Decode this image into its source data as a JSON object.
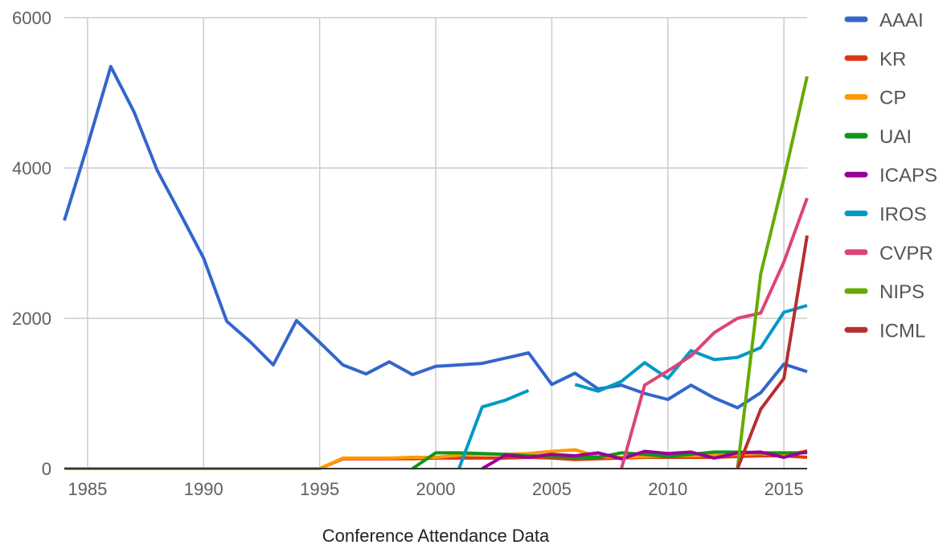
{
  "chart_data": {
    "type": "line",
    "title": "",
    "xlabel": "Conference Attendance Data",
    "ylabel": "",
    "xlim": [
      1984,
      2016
    ],
    "ylim": [
      0,
      6000
    ],
    "x_ticks": [
      1985,
      1990,
      1995,
      2000,
      2005,
      2010,
      2015
    ],
    "y_ticks": [
      0,
      2000,
      4000,
      6000
    ],
    "grid": true,
    "legend_position": "right",
    "series": [
      {
        "name": "AAAI",
        "color": "#3366cc",
        "points": [
          [
            1984,
            3300
          ],
          [
            1985,
            4300
          ],
          [
            1986,
            5350
          ],
          [
            1987,
            4750
          ],
          [
            1988,
            3970
          ],
          [
            1989,
            3390
          ],
          [
            1990,
            2800
          ],
          [
            1991,
            1960
          ],
          [
            1992,
            1690
          ],
          [
            1993,
            1380
          ],
          [
            1994,
            1970
          ],
          [
            1995,
            1680
          ],
          [
            1996,
            1380
          ],
          [
            1997,
            1260
          ],
          [
            1998,
            1420
          ],
          [
            1999,
            1250
          ],
          [
            2000,
            1360
          ],
          [
            2001,
            1380
          ],
          [
            2002,
            1400
          ],
          [
            2003,
            1470
          ],
          [
            2004,
            1540
          ],
          [
            2005,
            1120
          ],
          [
            2006,
            1270
          ],
          [
            2007,
            1060
          ],
          [
            2008,
            1110
          ],
          [
            2009,
            1000
          ],
          [
            2010,
            920
          ],
          [
            2011,
            1110
          ],
          [
            2012,
            940
          ],
          [
            2013,
            810
          ],
          [
            2014,
            1010
          ],
          [
            2015,
            1390
          ],
          [
            2016,
            1290
          ]
        ]
      },
      {
        "name": "KR",
        "color": "#dc3912",
        "points": [
          [
            1984,
            0
          ],
          [
            1985,
            0
          ],
          [
            1986,
            0
          ],
          [
            1987,
            0
          ],
          [
            1988,
            0
          ],
          [
            1989,
            0
          ],
          [
            1990,
            0
          ],
          [
            1991,
            0
          ],
          [
            1992,
            0
          ],
          [
            1993,
            0
          ],
          [
            1994,
            0
          ],
          [
            1995,
            0
          ],
          [
            1996,
            130
          ],
          [
            1997,
            130
          ],
          [
            1998,
            130
          ],
          [
            1999,
            130
          ],
          [
            2000,
            140
          ],
          [
            2001,
            140
          ],
          [
            2002,
            140
          ],
          [
            2003,
            140
          ],
          [
            2004,
            150
          ],
          [
            2005,
            140
          ],
          [
            2006,
            120
          ],
          [
            2007,
            130
          ],
          [
            2008,
            140
          ],
          [
            2009,
            150
          ],
          [
            2010,
            150
          ],
          [
            2011,
            150
          ],
          [
            2012,
            150
          ],
          [
            2013,
            160
          ],
          [
            2014,
            170
          ],
          [
            2015,
            170
          ],
          [
            2016,
            150
          ]
        ]
      },
      {
        "name": "CP",
        "color": "#ff9900",
        "points": [
          [
            1984,
            0
          ],
          [
            1985,
            0
          ],
          [
            1986,
            0
          ],
          [
            1987,
            0
          ],
          [
            1988,
            0
          ],
          [
            1989,
            0
          ],
          [
            1990,
            0
          ],
          [
            1991,
            0
          ],
          [
            1992,
            0
          ],
          [
            1993,
            0
          ],
          [
            1994,
            0
          ],
          [
            1995,
            0
          ],
          [
            1996,
            140
          ],
          [
            1997,
            140
          ],
          [
            1998,
            140
          ],
          [
            1999,
            150
          ],
          [
            2000,
            150
          ],
          [
            2001,
            180
          ],
          [
            2002,
            190
          ],
          [
            2003,
            190
          ],
          [
            2004,
            200
          ],
          [
            2005,
            230
          ],
          [
            2006,
            250
          ],
          [
            2007,
            160
          ],
          [
            2008,
            150
          ],
          [
            2009,
            160
          ],
          [
            2010,
            170
          ],
          [
            2011,
            170
          ],
          [
            2012,
            180
          ],
          [
            2013,
            190
          ],
          [
            2014,
            200
          ],
          [
            2015,
            170
          ],
          [
            2016,
            240
          ]
        ]
      },
      {
        "name": "UAI",
        "color": "#109618",
        "points": [
          [
            1999,
            0
          ],
          [
            2000,
            210
          ],
          [
            2001,
            210
          ],
          [
            2002,
            200
          ],
          [
            2003,
            190
          ],
          [
            2004,
            170
          ],
          [
            2005,
            160
          ],
          [
            2006,
            150
          ],
          [
            2007,
            150
          ],
          [
            2008,
            210
          ],
          [
            2009,
            190
          ],
          [
            2010,
            160
          ],
          [
            2011,
            190
          ],
          [
            2012,
            220
          ],
          [
            2013,
            220
          ],
          [
            2014,
            210
          ],
          [
            2015,
            210
          ],
          [
            2016,
            210
          ]
        ]
      },
      {
        "name": "ICAPS",
        "color": "#990099",
        "points": [
          [
            2002,
            0
          ],
          [
            2003,
            180
          ],
          [
            2004,
            150
          ],
          [
            2005,
            190
          ],
          [
            2006,
            170
          ],
          [
            2007,
            210
          ],
          [
            2008,
            130
          ],
          [
            2009,
            230
          ],
          [
            2010,
            200
          ],
          [
            2011,
            220
          ],
          [
            2012,
            140
          ],
          [
            2013,
            210
          ],
          [
            2014,
            220
          ],
          [
            2015,
            150
          ],
          [
            2016,
            230
          ]
        ]
      },
      {
        "name": "IROS",
        "color": "#0099c6",
        "segments": [
          [
            [
              2001,
              0
            ],
            [
              2002,
              820
            ],
            [
              2003,
              910
            ],
            [
              2004,
              1040
            ]
          ],
          [
            [
              2006,
              1120
            ],
            [
              2007,
              1030
            ],
            [
              2008,
              1160
            ],
            [
              2009,
              1410
            ],
            [
              2010,
              1200
            ],
            [
              2011,
              1570
            ],
            [
              2012,
              1450
            ],
            [
              2013,
              1480
            ],
            [
              2014,
              1610
            ],
            [
              2015,
              2080
            ],
            [
              2016,
              2170
            ]
          ]
        ]
      },
      {
        "name": "CVPR",
        "color": "#dd4477",
        "points": [
          [
            2008,
            0
          ],
          [
            2009,
            1110
          ],
          [
            2010,
            1300
          ],
          [
            2011,
            1500
          ],
          [
            2012,
            1810
          ],
          [
            2013,
            2000
          ],
          [
            2014,
            2070
          ],
          [
            2015,
            2750
          ],
          [
            2016,
            3600
          ]
        ]
      },
      {
        "name": "NIPS",
        "color": "#66aa00",
        "points": [
          [
            2013,
            0
          ],
          [
            2014,
            2590
          ],
          [
            2015,
            3860
          ],
          [
            2016,
            5220
          ]
        ]
      },
      {
        "name": "ICML",
        "color": "#b82e2e",
        "points": [
          [
            2013,
            0
          ],
          [
            2014,
            790
          ],
          [
            2015,
            1200
          ],
          [
            2016,
            3100
          ]
        ]
      }
    ]
  }
}
